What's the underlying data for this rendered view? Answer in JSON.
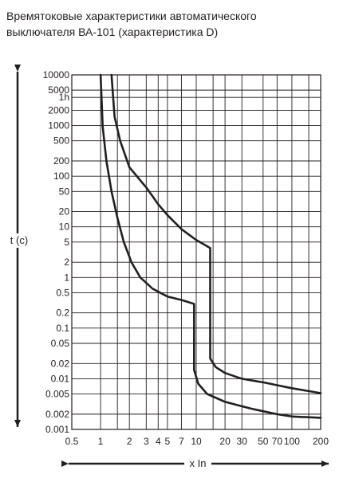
{
  "chart_data": {
    "type": "line",
    "title_lines": [
      "Времятоковые характеристики автоматического",
      "выключателя ВА-101 (характеристика D)"
    ],
    "xlabel": "x In",
    "ylabel": "t (c)",
    "x_scale": "log",
    "y_scale": "log",
    "xlim": [
      0.5,
      200
    ],
    "ylim": [
      0.001,
      10000
    ],
    "x_ticks": [
      {
        "value": 0.5,
        "label": "0.5"
      },
      {
        "value": 1,
        "label": "1"
      },
      {
        "value": 2,
        "label": "2"
      },
      {
        "value": 3,
        "label": "3"
      },
      {
        "value": 4,
        "label": "4"
      },
      {
        "value": 5,
        "label": "5"
      },
      {
        "value": 7,
        "label": "7"
      },
      {
        "value": 10,
        "label": "10"
      },
      {
        "value": 20,
        "label": "20"
      },
      {
        "value": 30,
        "label": "30"
      },
      {
        "value": 50,
        "label": "50"
      },
      {
        "value": 70,
        "label": "70"
      },
      {
        "value": 100,
        "label": "100"
      },
      {
        "value": 200,
        "label": "200"
      }
    ],
    "x_grid": [
      0.5,
      1,
      1.5,
      2,
      3,
      4,
      5,
      7,
      10,
      15,
      20,
      30,
      50,
      70,
      100,
      150,
      200
    ],
    "y_ticks": [
      {
        "value": 10000,
        "label": "10000"
      },
      {
        "value": 5000,
        "label": "5000"
      },
      {
        "value": 3600,
        "label": "1h"
      },
      {
        "value": 2000,
        "label": "2000"
      },
      {
        "value": 1000,
        "label": "1000"
      },
      {
        "value": 500,
        "label": "500"
      },
      {
        "value": 200,
        "label": "200"
      },
      {
        "value": 100,
        "label": "100"
      },
      {
        "value": 50,
        "label": "50"
      },
      {
        "value": 20,
        "label": "20"
      },
      {
        "value": 10,
        "label": "10"
      },
      {
        "value": 5,
        "label": "5"
      },
      {
        "value": 2,
        "label": "2"
      },
      {
        "value": 1,
        "label": "1"
      },
      {
        "value": 0.5,
        "label": "0.5"
      },
      {
        "value": 0.2,
        "label": "0.2"
      },
      {
        "value": 0.1,
        "label": "0.1"
      },
      {
        "value": 0.05,
        "label": "0.05"
      },
      {
        "value": 0.02,
        "label": "0.02"
      },
      {
        "value": 0.01,
        "label": "0.01"
      },
      {
        "value": 0.005,
        "label": "0.005"
      },
      {
        "value": 0.002,
        "label": "0.002"
      },
      {
        "value": 0.001,
        "label": "0.001"
      }
    ],
    "grid": true,
    "series": [
      {
        "points": [
          [
            1.0,
            10000
          ],
          [
            1.05,
            1000
          ],
          [
            1.15,
            200
          ],
          [
            1.3,
            50
          ],
          [
            1.5,
            15
          ],
          [
            1.75,
            5
          ],
          [
            2.1,
            2
          ],
          [
            2.6,
            1
          ],
          [
            3.5,
            0.6
          ],
          [
            5,
            0.42
          ],
          [
            7,
            0.36
          ],
          [
            9.5,
            0.3
          ],
          [
            9.5,
            0.015
          ],
          [
            10.5,
            0.008
          ],
          [
            13,
            0.005
          ],
          [
            20,
            0.0035
          ],
          [
            40,
            0.0025
          ],
          [
            70,
            0.002
          ],
          [
            100,
            0.0018
          ],
          [
            200,
            0.0017
          ]
        ]
      },
      {
        "points": [
          [
            1.3,
            10000
          ],
          [
            1.4,
            1500
          ],
          [
            1.6,
            500
          ],
          [
            2,
            150
          ],
          [
            3,
            60
          ],
          [
            4,
            28
          ],
          [
            5,
            17
          ],
          [
            7,
            9
          ],
          [
            10,
            5.5
          ],
          [
            14,
            3.8
          ],
          [
            14,
            0.025
          ],
          [
            16,
            0.017
          ],
          [
            20,
            0.013
          ],
          [
            30,
            0.01
          ],
          [
            50,
            0.0085
          ],
          [
            100,
            0.0065
          ],
          [
            200,
            0.0052
          ]
        ]
      }
    ]
  }
}
